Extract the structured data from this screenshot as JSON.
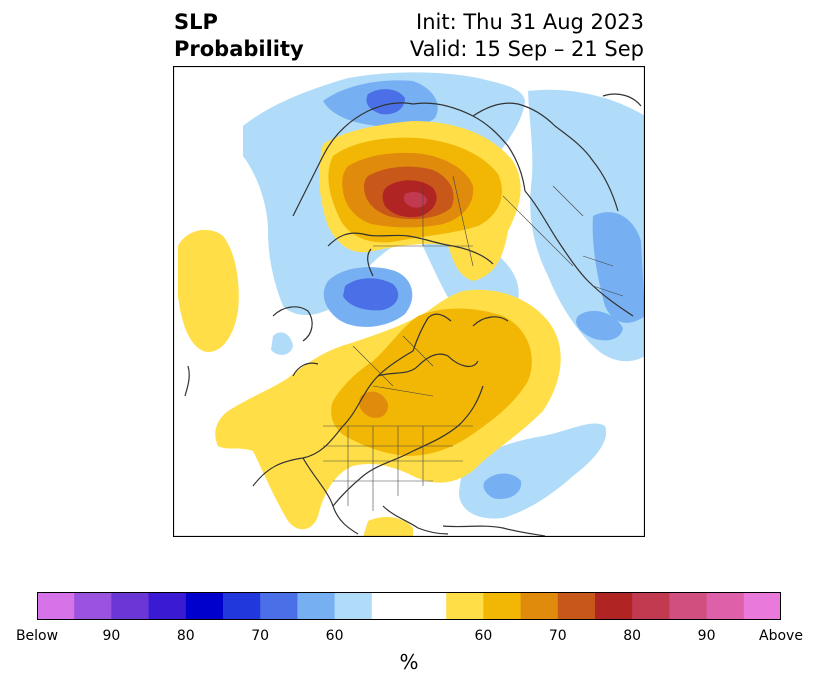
{
  "title": {
    "left_line1": "SLP",
    "left_line2": "Probability",
    "right_line1": "Init: Thu 31 Aug 2023",
    "right_line2": "Valid: 15 Sep – 21 Sep"
  },
  "colorbar": {
    "unit": "%",
    "colors": [
      "#d673e8",
      "#9b52df",
      "#6a36d6",
      "#3a1bd3",
      "#0000cc",
      "#2038dc",
      "#4a6fe6",
      "#77b0f2",
      "#b0dcfa",
      "#ffffff",
      "#ffffff",
      "#ffde48",
      "#f2b705",
      "#e08b0c",
      "#c8571a",
      "#b02424",
      "#c23a50",
      "#d14f7e",
      "#de60a8",
      "#e97adb"
    ],
    "ticks": [
      "Below",
      "90",
      "80",
      "70",
      "60",
      "60",
      "70",
      "80",
      "90",
      "Above"
    ]
  },
  "map": {
    "projection": "polar stereographic",
    "features": [
      "coastlines",
      "country borders",
      "US state borders",
      "Canadian province borders"
    ]
  }
}
